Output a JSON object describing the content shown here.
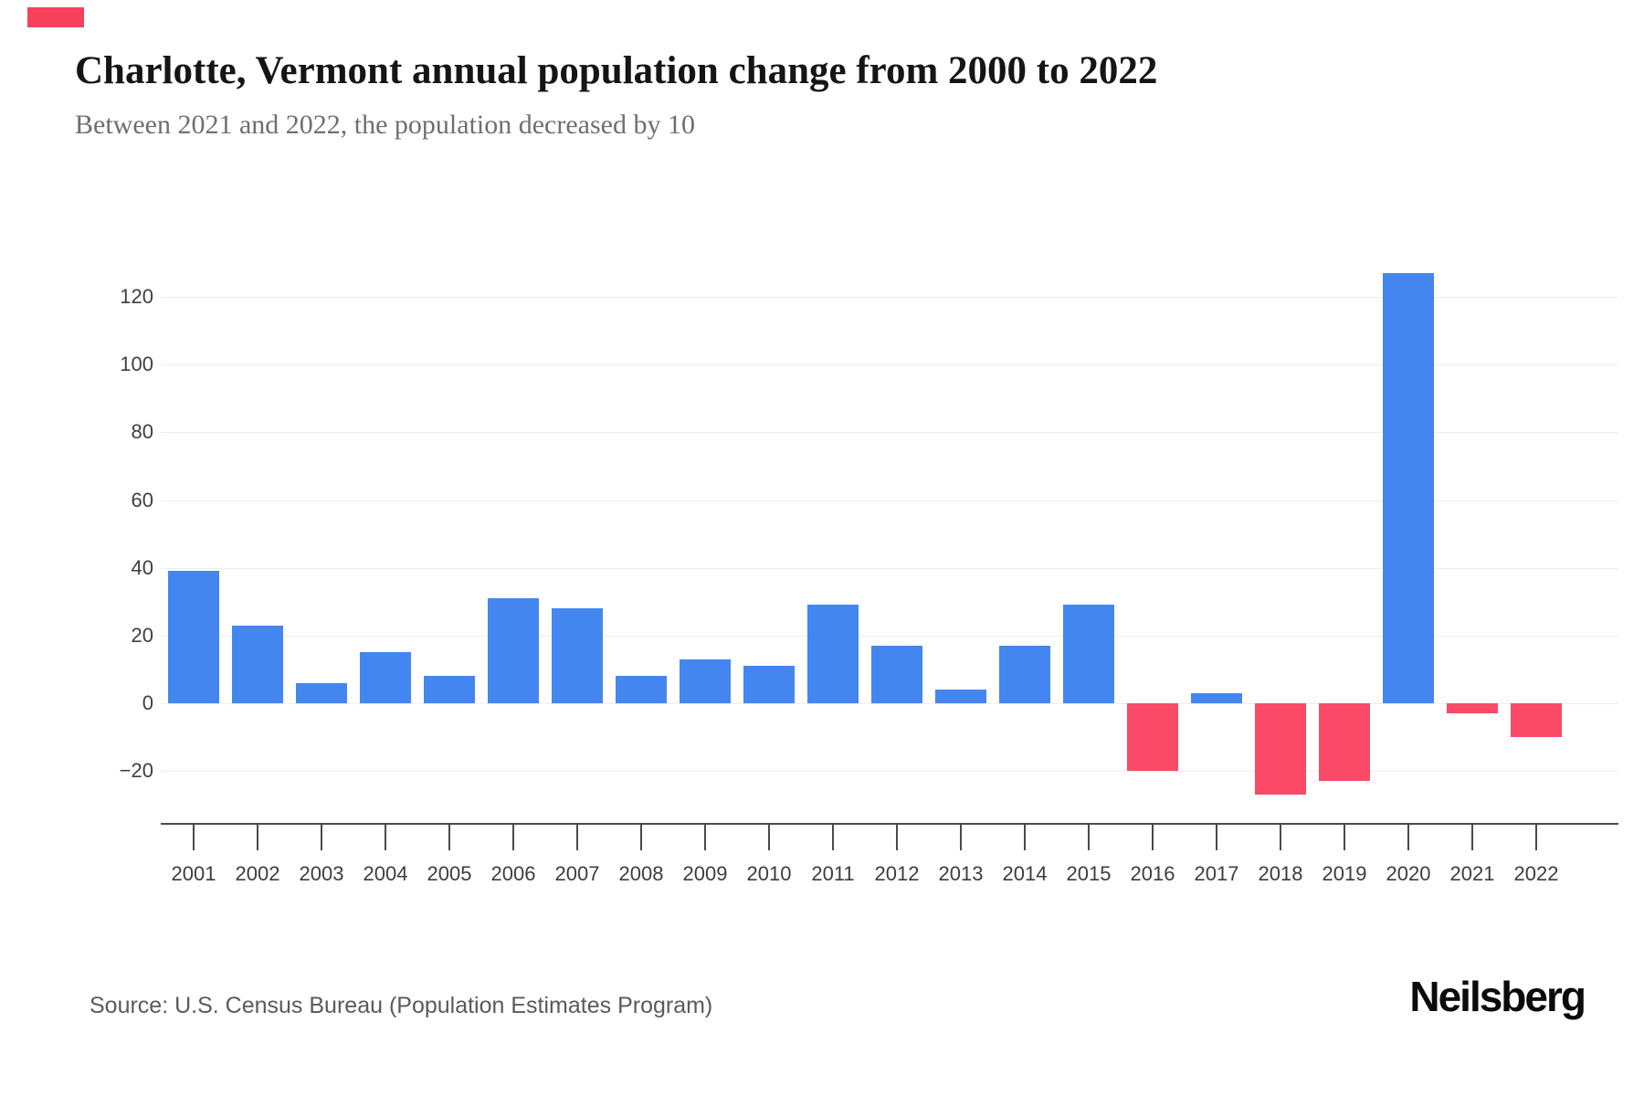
{
  "page": {
    "title": "Charlotte, Vermont annual population change from 2000 to 2022",
    "subtitle": "Between 2021 and 2022, the population decreased by 10",
    "source": "Source: U.S. Census Bureau (Population Estimates Program)",
    "brand": "Neilsberg"
  },
  "colors": {
    "positive": "#4486f0",
    "negative": "#fa4a67",
    "accent": "#f8415c",
    "grid": "#ededed",
    "axis": "#4a4a4a",
    "title": "#151515",
    "subtitle": "#6f6f6f",
    "tick_label": "#3d3d3d",
    "source_text": "#5a5a5a",
    "logo": "#0b0b0b"
  },
  "chart_data": {
    "type": "bar",
    "title": "Charlotte, Vermont annual population change from 2000 to 2022",
    "subtitle": "Between 2021 and 2022, the population decreased by 10",
    "xlabel": "",
    "ylabel": "",
    "categories": [
      "2001",
      "2002",
      "2003",
      "2004",
      "2005",
      "2006",
      "2007",
      "2008",
      "2009",
      "2010",
      "2011",
      "2012",
      "2013",
      "2014",
      "2015",
      "2016",
      "2017",
      "2018",
      "2019",
      "2020",
      "2021",
      "2022"
    ],
    "values": [
      39,
      23,
      6,
      15,
      8,
      31,
      28,
      8,
      13,
      11,
      29,
      17,
      4,
      17,
      29,
      -20,
      3,
      -27,
      -23,
      127,
      -3,
      -10
    ],
    "series": [
      {
        "name": "Annual population change",
        "values": [
          39,
          23,
          6,
          15,
          8,
          31,
          28,
          8,
          13,
          11,
          29,
          17,
          4,
          17,
          29,
          -20,
          3,
          -27,
          -23,
          127,
          -3,
          -10
        ]
      }
    ],
    "yticks": [
      -20,
      0,
      20,
      40,
      60,
      80,
      100,
      120
    ],
    "ylim": [
      -30,
      135
    ],
    "grid": true,
    "legend": false,
    "positive_color": "#4486f0",
    "negative_color": "#fa4a67"
  }
}
